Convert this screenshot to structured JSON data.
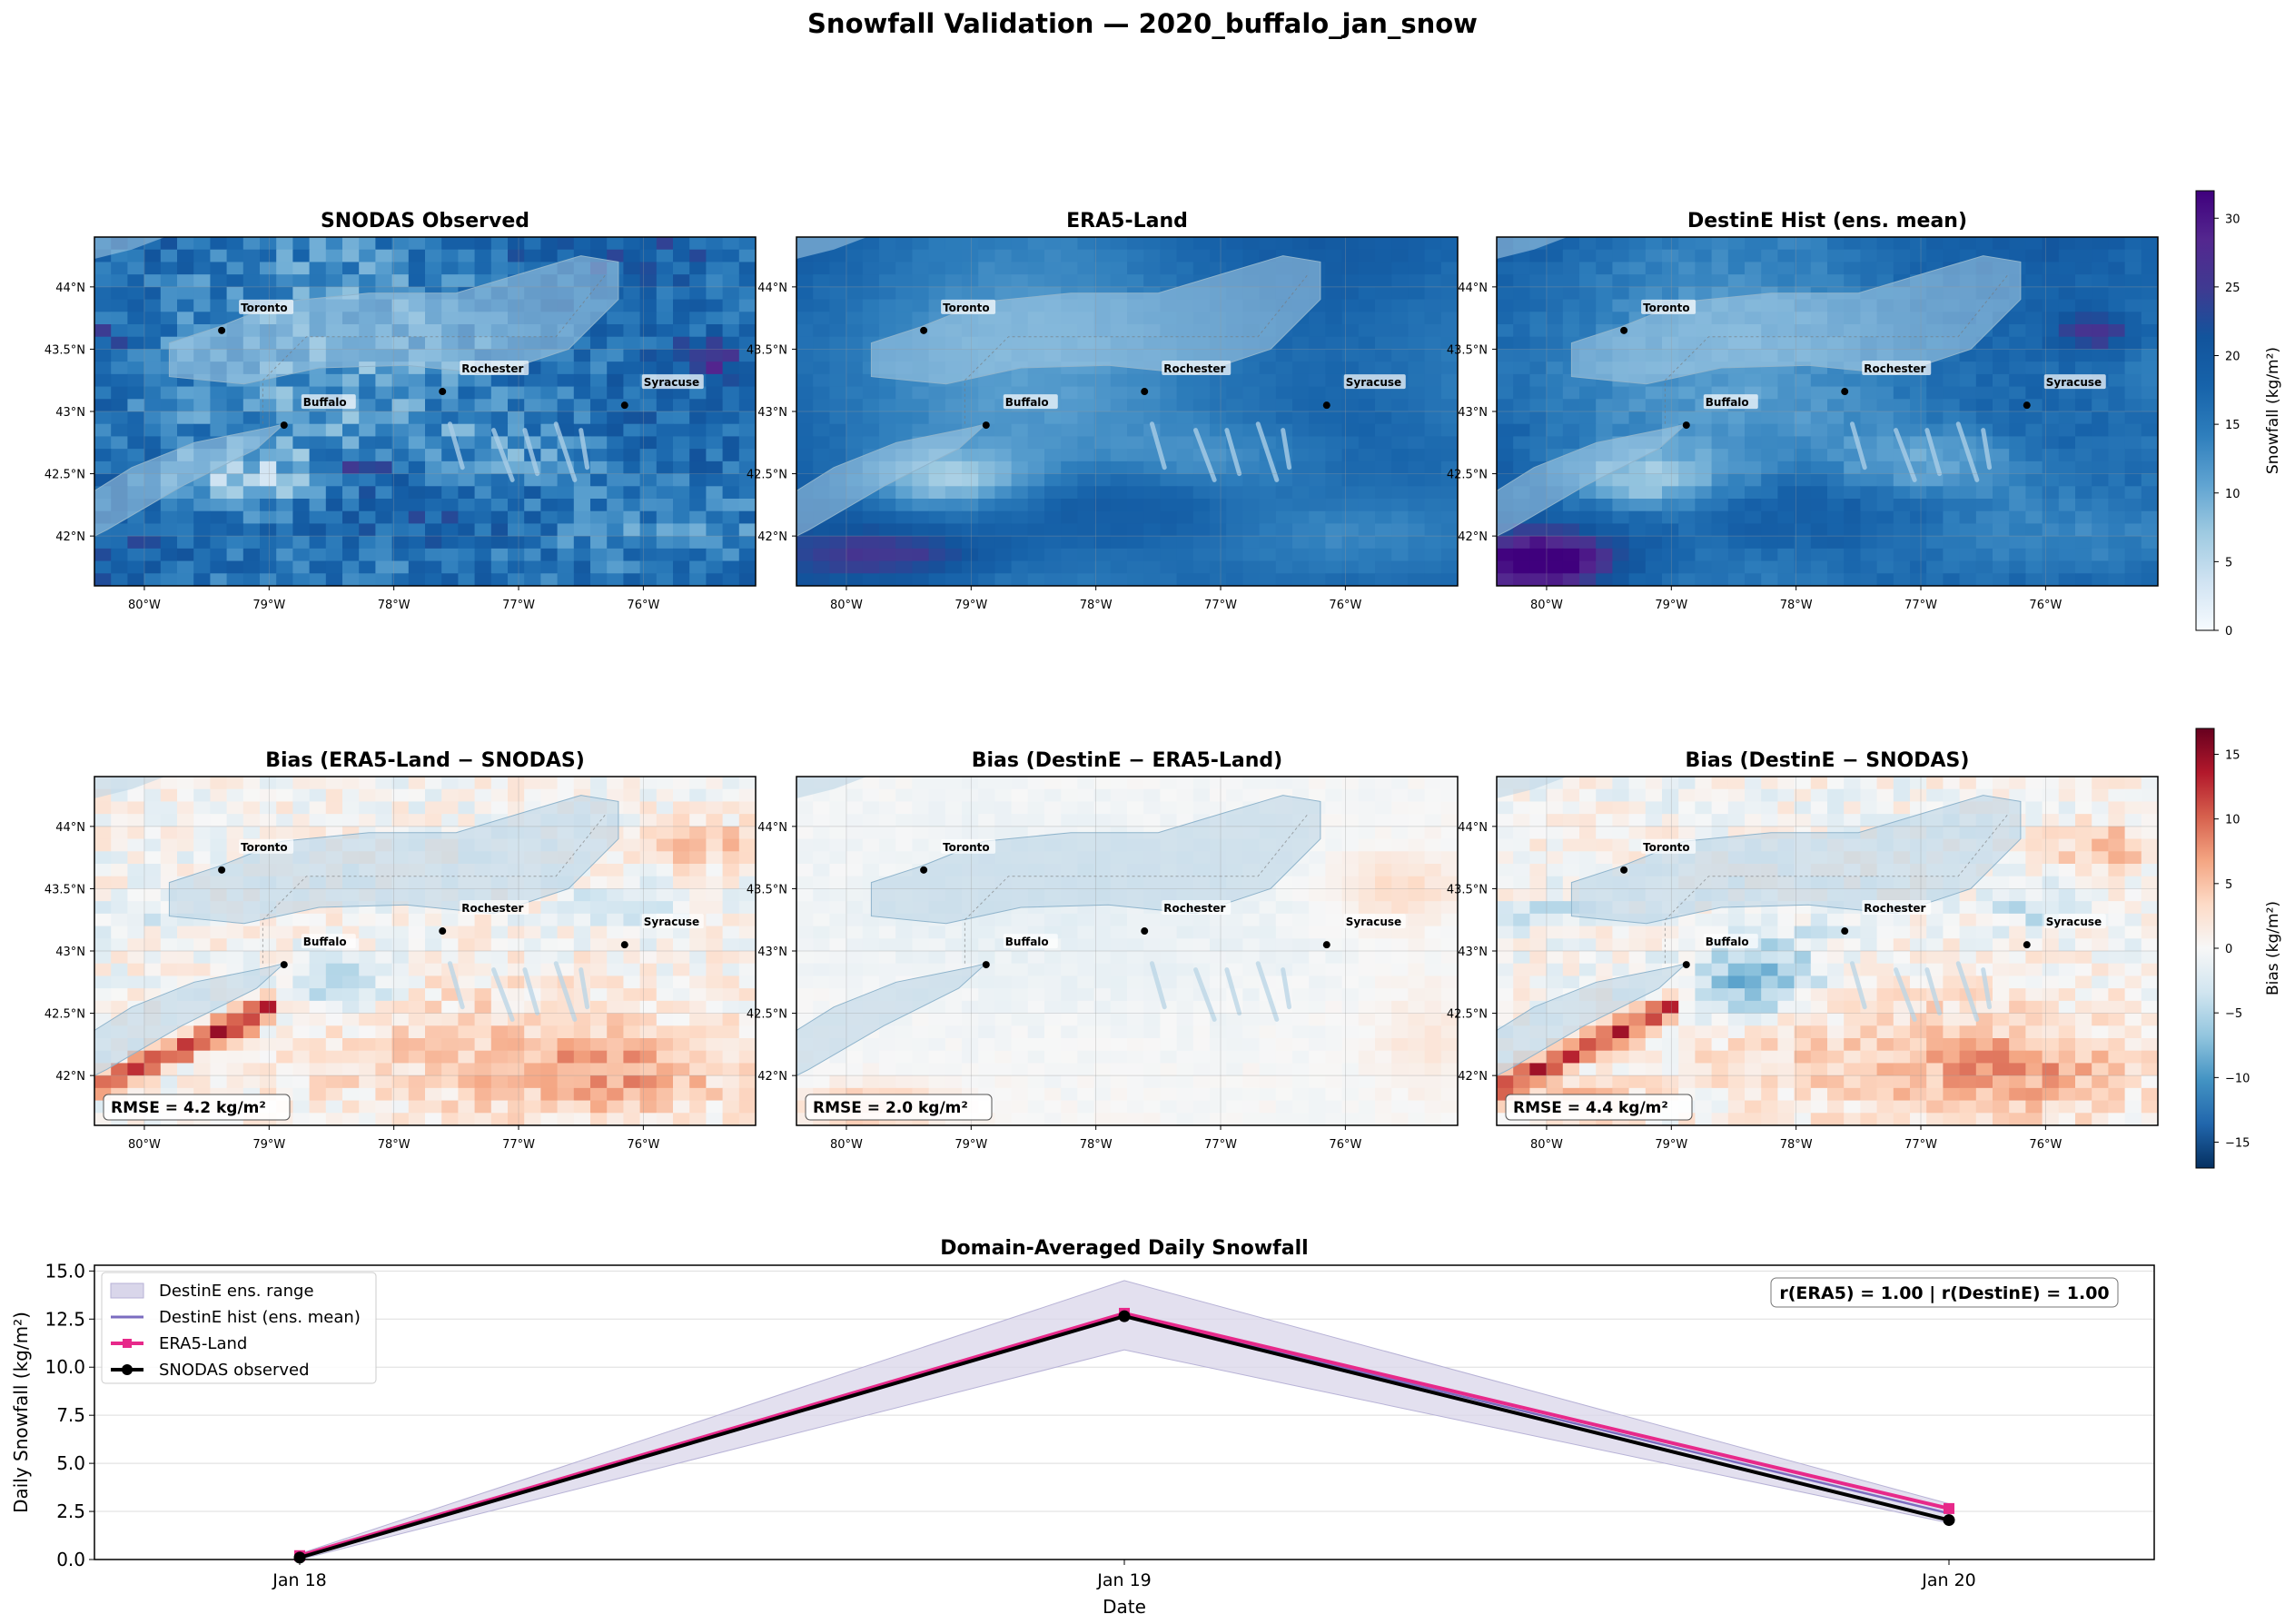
{
  "figure": {
    "title": "Snowfall Validation — 2020_buffalo_jan_snow"
  },
  "colors": {
    "snow_scale": [
      "#f7fbff",
      "#d0e3f2",
      "#9ecae1",
      "#5fa3d1",
      "#2e7ebc",
      "#1763aa",
      "#12549c",
      "#3f3a91",
      "#54278f",
      "#3f007d"
    ],
    "bias_scale": [
      "#053061",
      "#2166ac",
      "#4393c3",
      "#92c5de",
      "#d1e5f0",
      "#f7f7f7",
      "#fddbc7",
      "#f4a582",
      "#d6604d",
      "#b2182b",
      "#67001f"
    ],
    "lake": "#bcd6e6",
    "era5_line": "#e7298a",
    "destine_line": "#7b6cc0",
    "destine_range": "#d9d6ea",
    "snodas_line": "#000000"
  },
  "maps": {
    "lon_ticks": [
      "80°W",
      "79°W",
      "78°W",
      "77°W",
      "76°W"
    ],
    "lat_ticks": [
      "44°N",
      "43.5°N",
      "43°N",
      "42.5°N",
      "42°N"
    ],
    "cities": [
      {
        "name": "Toronto",
        "lon": -79.38,
        "lat": 43.65
      },
      {
        "name": "Buffalo",
        "lon": -78.88,
        "lat": 42.89
      },
      {
        "name": "Rochester",
        "lon": -77.61,
        "lat": 43.16
      },
      {
        "name": "Syracuse",
        "lon": -76.15,
        "lat": 43.05
      }
    ],
    "extent": {
      "lon_min": -80.4,
      "lon_max": -75.1,
      "lat_min": 41.6,
      "lat_max": 44.4
    },
    "panels": [
      {
        "id": "p1",
        "title": "SNODAS Observed",
        "kind": "snow",
        "variant": "obs"
      },
      {
        "id": "p2",
        "title": "ERA5-Land",
        "kind": "snow",
        "variant": "era"
      },
      {
        "id": "p3",
        "title": "DestinE Hist (ens. mean)",
        "kind": "snow",
        "variant": "dest"
      },
      {
        "id": "p4",
        "title": "Bias (ERA5-Land − SNODAS)",
        "kind": "bias",
        "variant": "b1",
        "rmse": "RMSE = 4.2 kg/m²"
      },
      {
        "id": "p5",
        "title": "Bias (DestinE − ERA5-Land)",
        "kind": "bias",
        "variant": "b2",
        "rmse": "RMSE = 2.0 kg/m²"
      },
      {
        "id": "p6",
        "title": "Bias (DestinE − SNODAS)",
        "kind": "bias",
        "variant": "b3",
        "rmse": "RMSE = 4.4 kg/m²"
      }
    ]
  },
  "colorbars": {
    "snow": {
      "label": "Snowfall (kg/m²)",
      "range": [
        0,
        32
      ],
      "ticks": [
        "0",
        "5",
        "10",
        "15",
        "20",
        "25",
        "30"
      ],
      "tick_values": [
        0,
        5,
        10,
        15,
        20,
        25,
        30
      ]
    },
    "bias": {
      "label": "Bias (kg/m²)",
      "range": [
        -17,
        17
      ],
      "ticks": [
        "−15",
        "−10",
        "−5",
        "0",
        "5",
        "10",
        "15"
      ],
      "tick_values": [
        -15,
        -10,
        -5,
        0,
        5,
        10,
        15
      ]
    }
  },
  "chart_data": {
    "type": "line",
    "title": "Domain-Averaged Daily Snowfall",
    "xlabel": "Date",
    "ylabel": "Daily Snowfall (kg/m²)",
    "categories": [
      "Jan 18",
      "Jan 19",
      "Jan 20"
    ],
    "ylim": [
      0,
      15.3
    ],
    "yticks": [
      "0.0",
      "2.5",
      "5.0",
      "7.5",
      "10.0",
      "12.5",
      "15.0"
    ],
    "ytick_values": [
      0,
      2.5,
      5,
      7.5,
      10,
      12.5,
      15
    ],
    "grid": true,
    "legend_position": "top-left",
    "annotation": "r(ERA5) = 1.00  |  r(DestinE) = 1.00",
    "series": [
      {
        "name": "DestinE ens. range",
        "kind": "band",
        "low": [
          0.0,
          10.9,
          1.9
        ],
        "high": [
          0.3,
          14.5,
          2.9
        ]
      },
      {
        "name": "DestinE hist (ens. mean)",
        "kind": "line",
        "values": [
          0.15,
          12.7,
          2.4
        ]
      },
      {
        "name": "ERA5-Land",
        "kind": "line",
        "marker": "square",
        "values": [
          0.2,
          12.8,
          2.65
        ]
      },
      {
        "name": "SNODAS observed",
        "kind": "line",
        "marker": "circle",
        "values": [
          0.1,
          12.65,
          2.05
        ]
      }
    ]
  }
}
